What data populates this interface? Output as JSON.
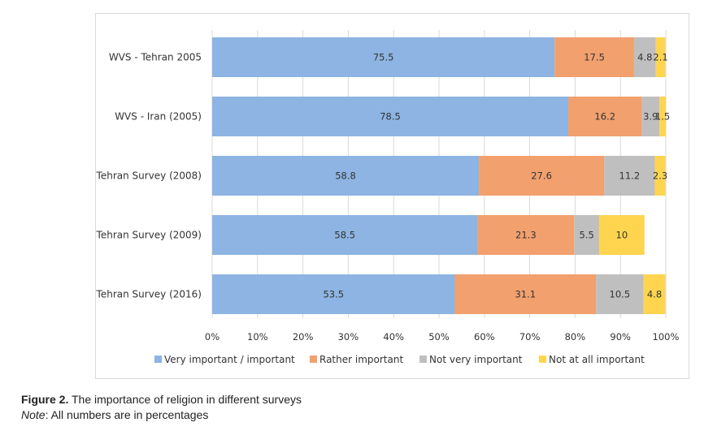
{
  "caption": {
    "figure_label": "Figure 2.",
    "figure_text": "The importance of religion in different surveys",
    "note_label": "Note",
    "note_text": ": All numbers are in percentages"
  },
  "chart_data": {
    "type": "bar",
    "orientation": "horizontal",
    "stacked": true,
    "categories": [
      "WVS - Tehran 2005",
      "WVS - Iran (2005)",
      "Tehran Survey (2008)",
      "Tehran Survey (2009)",
      "Tehran Survey (2016)"
    ],
    "series": [
      {
        "name": "Very important / important",
        "color": "#8db4e2",
        "values": [
          75.5,
          78.5,
          58.8,
          58.5,
          53.5
        ]
      },
      {
        "name": "Rather important",
        "color": "#f2a06e",
        "values": [
          17.5,
          16.2,
          27.6,
          21.3,
          31.1
        ]
      },
      {
        "name": "Not very important",
        "color": "#bfbfbf",
        "values": [
          4.8,
          3.9,
          11.2,
          5.5,
          10.5
        ]
      },
      {
        "name": "Not at all important",
        "color": "#ffd54f",
        "values": [
          2.1,
          1.5,
          2.3,
          10,
          4.8
        ]
      }
    ],
    "xlim": [
      0,
      100
    ],
    "xticks": [
      "0%",
      "10%",
      "20%",
      "30%",
      "40%",
      "50%",
      "60%",
      "70%",
      "80%",
      "90%",
      "100%"
    ],
    "grid": true,
    "legend": "bottom"
  }
}
